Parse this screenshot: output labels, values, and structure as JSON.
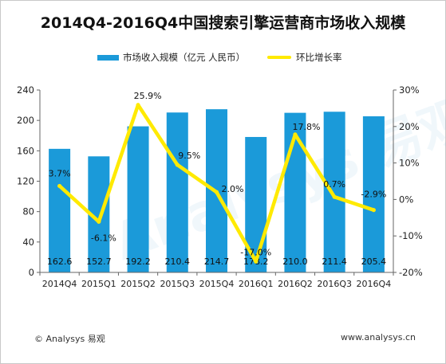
{
  "title": "2014Q4-2016Q4中国搜索引擎运营商市场收入规模",
  "footer": {
    "left": "© Analysys 易观",
    "right": "www.analysys.cn"
  },
  "watermark": "Analysys 易观",
  "colors": {
    "bar": "#1b9ad9",
    "line": "#ffea00",
    "axis": "#666666",
    "text": "#222222"
  },
  "chart_data": {
    "type": "bar",
    "categories": [
      "2014Q4",
      "2015Q1",
      "2015Q2",
      "2015Q3",
      "2015Q4",
      "2016Q1",
      "2016Q2",
      "2016Q3",
      "2016Q4"
    ],
    "series": [
      {
        "name": "市场收入规模（亿元 人民币）",
        "type": "bar",
        "axis": "left",
        "values": [
          162.6,
          152.7,
          192.2,
          210.4,
          214.7,
          178.2,
          210.0,
          211.4,
          205.4
        ],
        "labels": [
          "162.6",
          "152.7",
          "192.2",
          "210.4",
          "214.7",
          "178.2",
          "210.0",
          "211.4",
          "205.4"
        ]
      },
      {
        "name": "环比增长率",
        "type": "line",
        "axis": "right",
        "values": [
          3.7,
          -6.1,
          25.9,
          9.5,
          2.0,
          -17.0,
          17.8,
          0.7,
          -2.9
        ],
        "labels": [
          "3.7%",
          "-6.1%",
          "25.9%",
          "9.5%",
          "2.0%",
          "-17.0%",
          "17.8%",
          "0.7%",
          "-2.9%"
        ]
      }
    ],
    "y_left": {
      "min": 0,
      "max": 240,
      "ticks": [
        0,
        40,
        80,
        120,
        160,
        200,
        240
      ],
      "tick_labels": [
        "0",
        "40",
        "80",
        "120",
        "160",
        "200",
        "240"
      ]
    },
    "y_right": {
      "min": -20,
      "max": 30,
      "ticks": [
        -20,
        -10,
        0,
        10,
        20,
        30
      ],
      "tick_labels": [
        "-20%",
        "-10%",
        "0%",
        "10%",
        "20%",
        "30%"
      ]
    },
    "legend_position": "top",
    "grid": false
  }
}
